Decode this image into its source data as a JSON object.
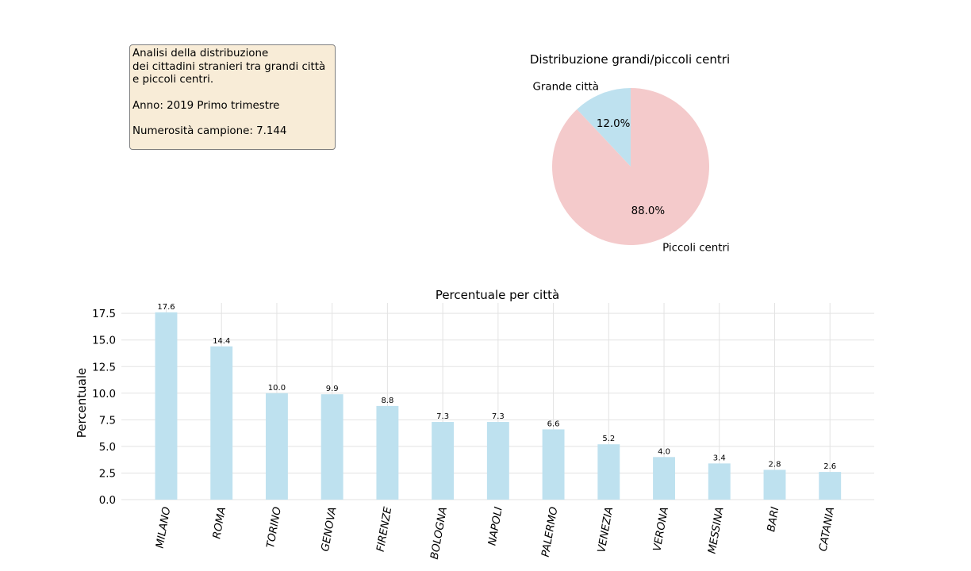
{
  "info_box": {
    "lines": [
      "Analisi della distribuzione",
      "dei cittadini stranieri tra grandi città",
      "e piccoli centri."
    ],
    "year": "Anno: 2019 Primo trimestre",
    "sample": "Numerosità campione: 7.144"
  },
  "chart_data": [
    {
      "type": "pie",
      "title": "Distribuzione grandi/piccoli centri",
      "labels": [
        "Grande città",
        "Piccoli centri"
      ],
      "values": [
        12.0,
        88.0
      ],
      "value_labels": [
        "12.0%",
        "88.0%"
      ],
      "colors": [
        "#bee1ef",
        "#f4cacb"
      ]
    },
    {
      "type": "bar",
      "title": "Percentuale per città",
      "xlabel": "",
      "ylabel": "Percentuale",
      "categories": [
        "MILANO",
        "ROMA",
        "TORINO",
        "GENOVA",
        "FIRENZE",
        "BOLOGNA",
        "NAPOLI",
        "PALERMO",
        "VENEZIA",
        "VERONA",
        "MESSINA",
        "BARI",
        "CATANIA"
      ],
      "values": [
        17.6,
        14.4,
        10.0,
        9.9,
        8.8,
        7.3,
        7.3,
        6.6,
        5.2,
        4.0,
        3.4,
        2.8,
        2.6
      ],
      "value_labels": [
        "17.6",
        "14.4",
        "10.0",
        "9.9",
        "8.8",
        "7.3",
        "7.3",
        "6.6",
        "5.2",
        "4.0",
        "3.4",
        "2.8",
        "2.6"
      ],
      "yticks": [
        "0.0",
        "2.5",
        "5.0",
        "7.5",
        "10.0",
        "12.5",
        "15.0",
        "17.5"
      ],
      "ylim": [
        0,
        18.48
      ],
      "grid": true,
      "bar_color": "#bee1ef"
    }
  ]
}
